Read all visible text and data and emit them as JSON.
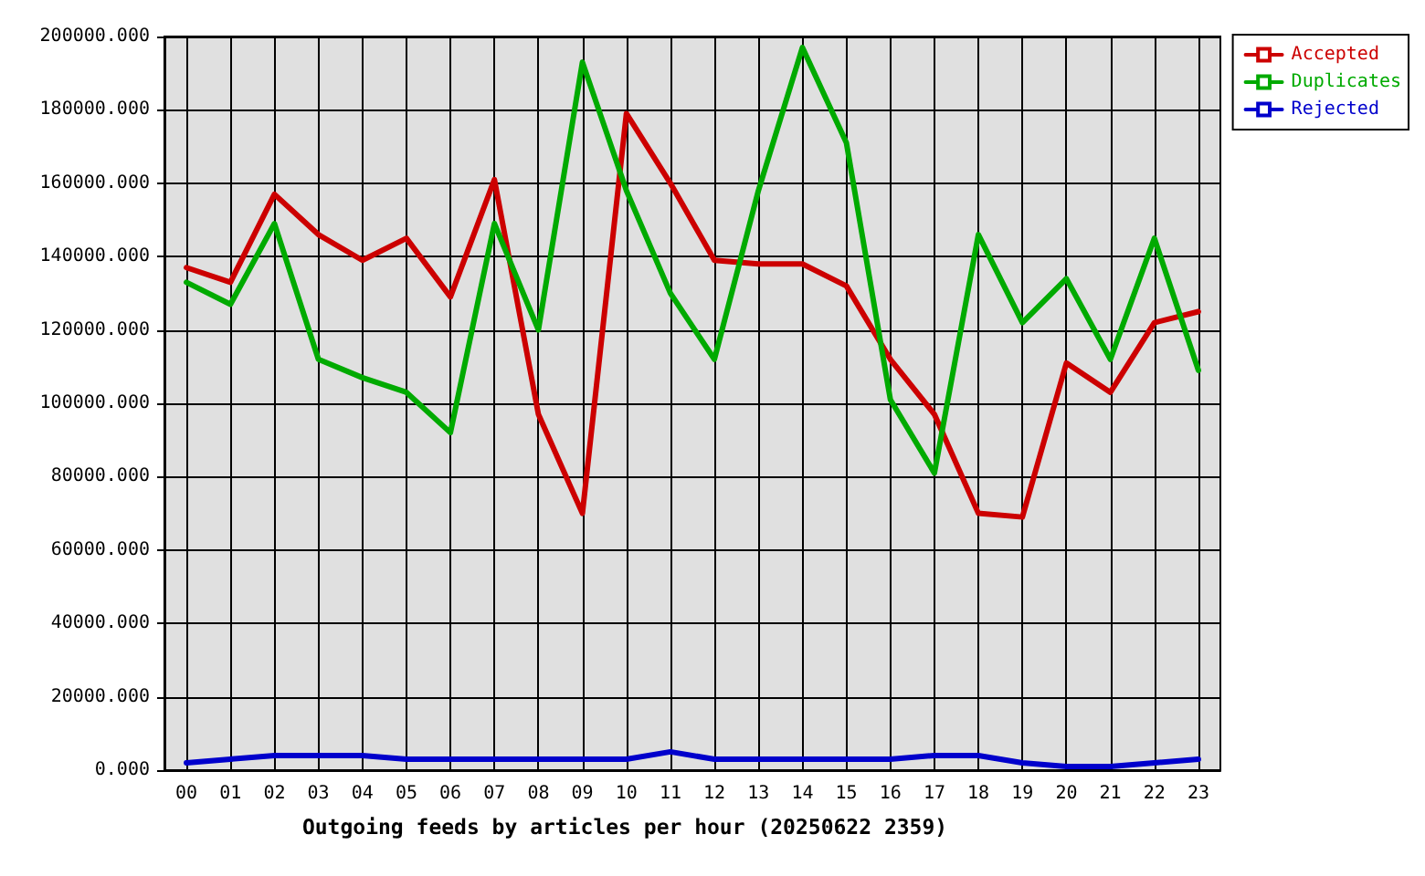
{
  "chart_data": {
    "type": "line",
    "xlabel": "Outgoing feeds by articles per hour (20250622 2359)",
    "categories": [
      "00",
      "01",
      "02",
      "03",
      "04",
      "05",
      "06",
      "07",
      "08",
      "09",
      "10",
      "11",
      "12",
      "13",
      "14",
      "15",
      "16",
      "17",
      "18",
      "19",
      "20",
      "21",
      "22",
      "23"
    ],
    "series": [
      {
        "name": "Accepted",
        "color": "#cc0000",
        "values": [
          137000,
          133000,
          157000,
          146000,
          139000,
          145000,
          129000,
          161000,
          97000,
          70000,
          179000,
          160000,
          139000,
          138000,
          138000,
          132000,
          112000,
          97000,
          70000,
          69000,
          111000,
          103000,
          122000,
          125000
        ]
      },
      {
        "name": "Duplicates",
        "color": "#00aa00",
        "values": [
          133000,
          127000,
          149000,
          112000,
          107000,
          103000,
          92000,
          149000,
          120000,
          193000,
          158000,
          130000,
          112000,
          158000,
          197000,
          171000,
          101000,
          81000,
          146000,
          122000,
          134000,
          112000,
          145000,
          109000
        ]
      },
      {
        "name": "Rejected",
        "color": "#0000cc",
        "values": [
          2000,
          3000,
          4000,
          4000,
          4000,
          3000,
          3000,
          3000,
          3000,
          3000,
          3000,
          5000,
          3000,
          3000,
          3000,
          3000,
          3000,
          4000,
          4000,
          2000,
          1000,
          1000,
          2000,
          3000
        ]
      }
    ],
    "ylim": [
      0,
      200000
    ],
    "yticks": [
      {
        "value": 0,
        "label": "0.000"
      },
      {
        "value": 20000,
        "label": "20000.000"
      },
      {
        "value": 40000,
        "label": "40000.000"
      },
      {
        "value": 60000,
        "label": "60000.000"
      },
      {
        "value": 80000,
        "label": "80000.000"
      },
      {
        "value": 100000,
        "label": "100000.000"
      },
      {
        "value": 120000,
        "label": "120000.000"
      },
      {
        "value": 140000,
        "label": "140000.000"
      },
      {
        "value": 160000,
        "label": "160000.000"
      },
      {
        "value": 180000,
        "label": "180000.000"
      },
      {
        "value": 200000,
        "label": "200000.000"
      }
    ],
    "grid": true,
    "legend": "top right",
    "marker": "none",
    "line_style": "solid"
  }
}
